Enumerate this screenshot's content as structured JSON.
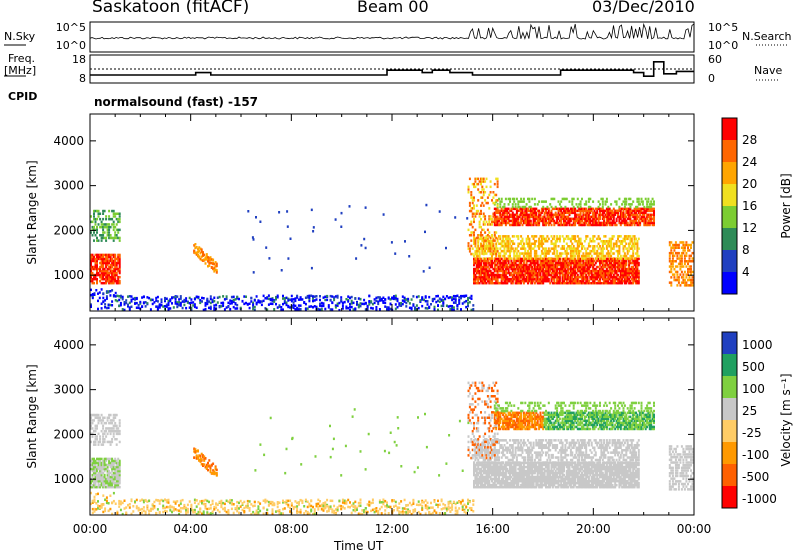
{
  "header": {
    "site": "Saskatoon (fitACF)",
    "beam": "Beam 00",
    "date": "03/Dec/2010"
  },
  "side_labels": {
    "nsky": "N.Sky",
    "nsearch": "N.Search",
    "freq": "Freq.",
    "mhz": "[MHz]",
    "nave": "Nave",
    "cpid": "CPID"
  },
  "cpid_text": "normalsound (fast) -157",
  "colors": {
    "power": [
      "#0000ff",
      "#2040c0",
      "#2e8b57",
      "#7ccd32",
      "#f0e020",
      "#ffa500",
      "#ff6600",
      "#ff0000"
    ],
    "velocity": [
      "#ff0000",
      "#ff6000",
      "#ff9900",
      "#ffcc66",
      "#c8c8c8",
      "#7fd040",
      "#20a060",
      "#2040c0"
    ],
    "gray": "#c0c0c0"
  },
  "chart_data": [
    {
      "type": "line",
      "name": "noise",
      "yticks_left": [
        "10^5",
        "10^0"
      ],
      "yticks_right": [
        "10^5",
        "10^0"
      ],
      "xlim": [
        "00:00",
        "24:00"
      ]
    },
    {
      "type": "line",
      "name": "frequency",
      "ylabel_left": "Freq. [MHz]",
      "yticks_left": [
        18,
        8
      ],
      "yticks_right": [
        60,
        0
      ],
      "frequency_steps": [
        {
          "start": 0.0,
          "end": 4.2,
          "value": 10.5
        },
        {
          "start": 4.2,
          "end": 4.8,
          "value": 11.5
        },
        {
          "start": 4.8,
          "end": 11.8,
          "value": 10.5
        },
        {
          "start": 11.8,
          "end": 13.2,
          "value": 12.5
        },
        {
          "start": 13.2,
          "end": 13.6,
          "value": 11.5
        },
        {
          "start": 13.6,
          "end": 14.3,
          "value": 12.5
        },
        {
          "start": 14.3,
          "end": 15.2,
          "value": 11.5
        },
        {
          "start": 15.2,
          "end": 18.7,
          "value": 10.5
        },
        {
          "start": 18.7,
          "end": 21.6,
          "value": 12.5
        },
        {
          "start": 21.6,
          "end": 22.0,
          "value": 11.5
        },
        {
          "start": 22.0,
          "end": 22.4,
          "value": 10.0
        },
        {
          "start": 22.4,
          "end": 22.8,
          "value": 16.0
        },
        {
          "start": 22.8,
          "end": 23.3,
          "value": 11.0
        },
        {
          "start": 23.3,
          "end": 24.0,
          "value": 12.0
        }
      ],
      "nave": 30
    },
    {
      "type": "heatmap",
      "name": "power",
      "ylabel": "Slant Range [km]",
      "yticks": [
        1000,
        2000,
        3000,
        4000
      ],
      "ylim": [
        200,
        4600
      ],
      "xlim": [
        0,
        24
      ],
      "colorbar_label": "Power [dB]",
      "colorbar_ticks": [
        4,
        8,
        12,
        16,
        20,
        24,
        28
      ]
    },
    {
      "type": "heatmap",
      "name": "velocity",
      "ylabel": "Slant Range [km]",
      "yticks": [
        1000,
        2000,
        3000,
        4000
      ],
      "ylim": [
        200,
        4600
      ],
      "xlim": [
        0,
        24
      ],
      "xlabel": "Time UT",
      "xticks": [
        "00:00",
        "04:00",
        "08:00",
        "12:00",
        "16:00",
        "20:00",
        "00:00"
      ],
      "colorbar_label": "Velocity [m s⁻¹]",
      "colorbar_ticks": [
        1000,
        500,
        100,
        25,
        -25,
        -100,
        -500,
        -1000
      ]
    }
  ]
}
